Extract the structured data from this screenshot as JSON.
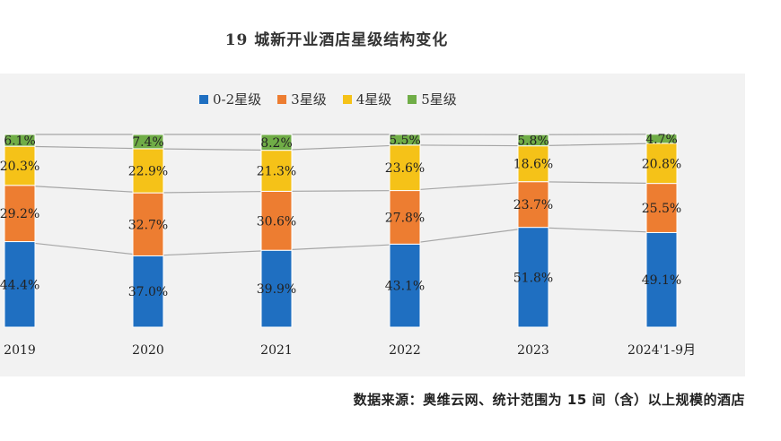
{
  "chart_data": {
    "type": "bar",
    "stacked": true,
    "title": "19 城新开业酒店星级结构变化",
    "categories": [
      "2019",
      "2020",
      "2021",
      "2022",
      "2023",
      "2024'1-9月"
    ],
    "series": [
      {
        "name": "0-2星级",
        "color": "#1f6fc1",
        "values": [
          44.4,
          37.0,
          39.9,
          43.1,
          51.8,
          49.1
        ]
      },
      {
        "name": "3星级",
        "color": "#ed7d31",
        "values": [
          29.2,
          32.7,
          30.6,
          27.8,
          23.7,
          25.5
        ]
      },
      {
        "name": "4星级",
        "color": "#f5c218",
        "values": [
          20.3,
          22.9,
          21.3,
          23.6,
          18.6,
          20.8
        ]
      },
      {
        "name": "5星级",
        "color": "#70ad47",
        "values": [
          6.1,
          7.4,
          8.2,
          5.5,
          5.8,
          4.7
        ]
      }
    ],
    "labels": [
      [
        "44.4%",
        "37.0%",
        "39.9%",
        "43.1%",
        "51.8%",
        "49.1%"
      ],
      [
        "29.2%",
        "32.7%",
        "30.6%",
        "27.8%",
        "23.7%",
        "25.5%"
      ],
      [
        "20.3%",
        "22.9%",
        "21.3%",
        "23.6%",
        "18.6%",
        "20.8%"
      ],
      [
        "6.1%",
        "7.4%",
        "8.2%",
        "5.5%",
        "5.8%",
        "4.7%"
      ]
    ],
    "ylim": [
      0,
      100
    ],
    "legend_position": "top",
    "grid": false,
    "series_connector_lines": true
  },
  "source_note": "数据来源：奥维云网、统计范围为 15 间（含）以上规模的酒店"
}
